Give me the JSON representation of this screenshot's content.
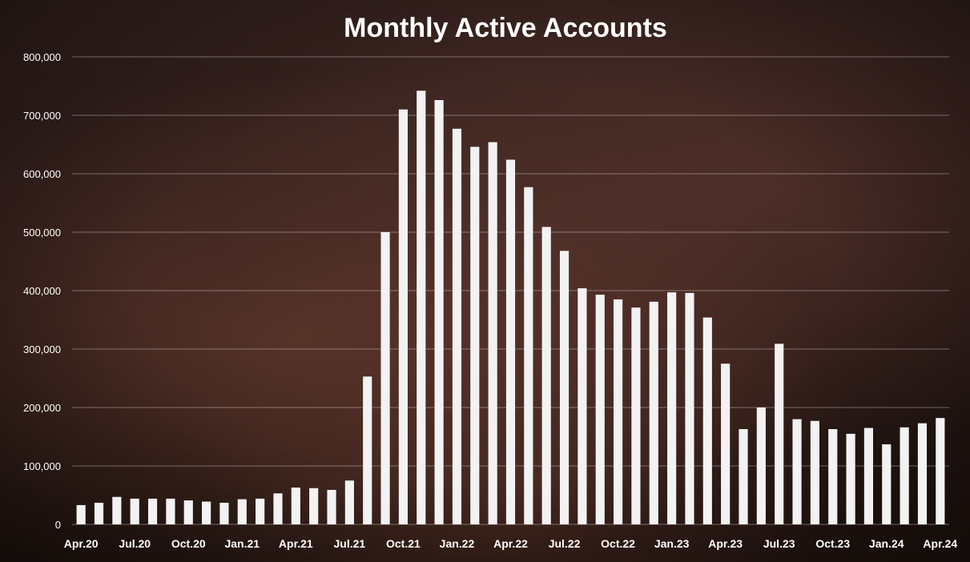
{
  "chart_data": {
    "type": "bar",
    "title": "Monthly Active Accounts",
    "xlabel": "",
    "ylabel": "",
    "ylim": [
      0,
      800000
    ],
    "yticks": [
      "0",
      "100,000",
      "200,000",
      "300,000",
      "400,000",
      "500,000",
      "600,000",
      "700,000",
      "800,000"
    ],
    "grid": true,
    "bar_color": "#f2f2f2",
    "xtick_labels": [
      "Apr.20",
      "Jul.20",
      "Oct.20",
      "Jan.21",
      "Apr.21",
      "Jul.21",
      "Oct.21",
      "Jan.22",
      "Apr.22",
      "Jul.22",
      "Oct.22",
      "Jan.23",
      "Apr.23",
      "Jul.23",
      "Oct.23",
      "Jan.24",
      "Apr.24"
    ],
    "categories": [
      "Apr.20",
      "May.20",
      "Jun.20",
      "Jul.20",
      "Aug.20",
      "Sep.20",
      "Oct.20",
      "Nov.20",
      "Dec.20",
      "Jan.21",
      "Feb.21",
      "Mar.21",
      "Apr.21",
      "May.21",
      "Jun.21",
      "Jul.21",
      "Aug.21",
      "Sep.21",
      "Oct.21",
      "Nov.21",
      "Dec.21",
      "Jan.22",
      "Feb.22",
      "Mar.22",
      "Apr.22",
      "May.22",
      "Jun.22",
      "Jul.22",
      "Aug.22",
      "Sep.22",
      "Oct.22",
      "Nov.22",
      "Dec.22",
      "Jan.23",
      "Feb.23",
      "Mar.23",
      "Apr.23",
      "May.23",
      "Jun.23",
      "Jul.23",
      "Aug.23",
      "Sep.23",
      "Oct.23",
      "Nov.23",
      "Dec.23",
      "Jan.24",
      "Feb.24",
      "Mar.24",
      "Apr.24"
    ],
    "values": [
      33000,
      37000,
      47000,
      44000,
      44000,
      44000,
      41000,
      39000,
      37000,
      43000,
      44000,
      53000,
      63000,
      62000,
      59000,
      75000,
      253000,
      500000,
      710000,
      742000,
      726000,
      677000,
      646000,
      654000,
      624000,
      577000,
      509000,
      468000,
      404000,
      393000,
      385000,
      371000,
      381000,
      397000,
      396000,
      354000,
      275000,
      163000,
      200000,
      309000,
      180000,
      177000,
      163000,
      155000,
      165000,
      137000,
      166000,
      173000,
      182000
    ]
  }
}
